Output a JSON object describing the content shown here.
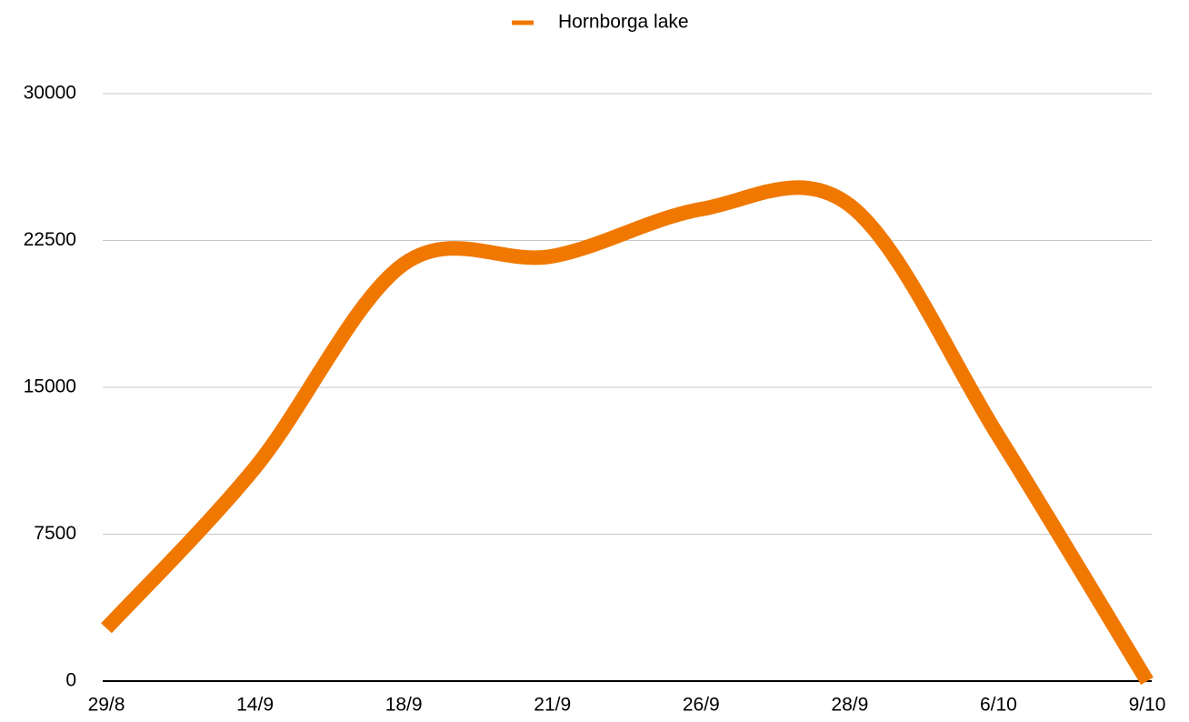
{
  "chart_data": {
    "type": "line",
    "categories": [
      "29/8",
      "14/9",
      "18/9",
      "21/9",
      "26/9",
      "28/9",
      "6/10",
      "9/10"
    ],
    "series": [
      {
        "name": "Hornborga lake",
        "color": "#f07800",
        "values": [
          2700,
          10900,
          21300,
          21700,
          24100,
          24300,
          12500,
          0
        ]
      }
    ],
    "ylim": [
      0,
      30000
    ],
    "yticks": [
      0,
      7500,
      15000,
      22500,
      30000
    ],
    "grid": true,
    "legend": "top",
    "smooth": true
  }
}
